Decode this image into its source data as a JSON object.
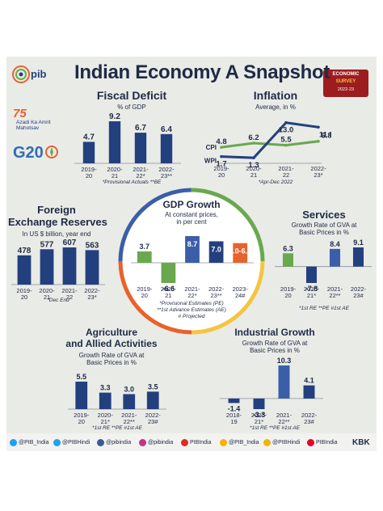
{
  "header": {
    "title": "Indian Economy A Snapshot",
    "logos": {
      "pib": "pib",
      "azadi": "Azadi Ka Amrit Mahotsav",
      "g20": "G20",
      "badge_line1": "ECONOMIC",
      "badge_line2": "SURVEY",
      "badge_line3": "2022-23"
    }
  },
  "colors": {
    "navy": "#23407e",
    "green": "#6aa84f",
    "blue": "#3b5ea8",
    "orange": "#e8622c",
    "text": "#1f2a44",
    "background": "#e9ebe7"
  },
  "chart_data": [
    {
      "id": "fiscal-deficit",
      "type": "bar",
      "title": "Fiscal Deficit",
      "subtitle": "% of GDP",
      "categories": [
        "2019-20",
        "2020-21",
        "2021-22*",
        "2022-23**"
      ],
      "values": [
        4.7,
        9.2,
        6.7,
        6.4
      ],
      "labels": [
        "4.7",
        "9.2",
        "6.7",
        "6.4"
      ],
      "footnote": "*Provisional Actuals **BE"
    },
    {
      "id": "inflation",
      "type": "line",
      "title": "Inflation",
      "subtitle": "Average, in %",
      "categories": [
        "2019-20",
        "2020-21",
        "2021-22",
        "2022-23*"
      ],
      "series": [
        {
          "name": "CPI",
          "values": [
            4.8,
            6.2,
            5.5,
            6.8
          ],
          "labels": [
            "4.8",
            "6.2",
            "5.5",
            "6.8"
          ]
        },
        {
          "name": "WPI",
          "values": [
            1.7,
            1.3,
            13.0,
            11.5
          ],
          "labels": [
            "1.7",
            "1.3",
            "13.0",
            "11.5"
          ]
        }
      ],
      "footnote": "*Apr-Dec 2022"
    },
    {
      "id": "forex",
      "type": "bar",
      "title_line1": "Foreign",
      "title_line2": "Exchange Reserves",
      "subtitle": "In US $ billion, year end",
      "categories": [
        "2019-20",
        "2020-21",
        "2021-22",
        "2022-23*"
      ],
      "values": [
        478,
        577,
        607,
        563
      ],
      "labels": [
        "478",
        "577",
        "607",
        "563"
      ],
      "footnote": "*Dec End"
    },
    {
      "id": "gdp-growth",
      "type": "bar",
      "title": "GDP Growth",
      "subtitle_line1": "At constant prices,",
      "subtitle_line2": "in per cent",
      "categories": [
        "2019-20",
        "2020-21",
        "2021-22*",
        "2022-23**",
        "2023-24#"
      ],
      "values": [
        3.7,
        -6.6,
        8.7,
        7.0,
        6.4
      ],
      "labels": [
        "3.7",
        "-6.6",
        "8.7",
        "7.0",
        "6.0-6.8"
      ],
      "footnote_lines": [
        "*Provisional Estimates (PE)",
        "**1st Advance Estimates (AE)",
        "# Projected"
      ]
    },
    {
      "id": "services",
      "type": "bar",
      "title": "Services",
      "subtitle_line1": "Growth Rate of GVA at",
      "subtitle_line2": "Basic Prices in %",
      "categories": [
        "2019-20",
        "2020-21*",
        "2021-22**",
        "2022-23#"
      ],
      "values": [
        6.3,
        -7.8,
        8.4,
        9.1
      ],
      "labels": [
        "6.3",
        "-7.8",
        "8.4",
        "9.1"
      ],
      "footnote": "*1st RE  **PE  #1st AE"
    },
    {
      "id": "agriculture",
      "type": "bar",
      "title_line1": "Agriculture",
      "title_line2": "and Allied Activities",
      "subtitle_line1": "Growth Rate of GVA at",
      "subtitle_line2": "Basic Prices in %",
      "categories": [
        "2019-20",
        "2020-21*",
        "2021-22**",
        "2022-23#"
      ],
      "values": [
        5.5,
        3.3,
        3.0,
        3.5
      ],
      "labels": [
        "5.5",
        "3.3",
        "3.0",
        "3.5"
      ],
      "footnote": "*1st RE  **PE  #1st AE"
    },
    {
      "id": "industrial",
      "type": "bar",
      "title": "Industrial Growth",
      "subtitle_line1": "Growth Rate of GVA at",
      "subtitle_line2": "Basic Prices in %",
      "categories": [
        "2018-19",
        "2020-21*",
        "2021-22**",
        "2022-23#"
      ],
      "values": [
        -1.4,
        -3.3,
        10.3,
        4.1
      ],
      "labels": [
        "-1.4",
        "-3.3",
        "10.3",
        "4.1"
      ],
      "footnote": "*1st RE  **PE  #1st AE"
    }
  ],
  "footer": {
    "items": [
      "@PIB_India",
      "@PIBHindi",
      "@pibindia",
      "@pibindia",
      "PIBIndia",
      "@PIB_India",
      "@PIBHindi",
      "PIBIndia"
    ],
    "brand": "KBK"
  }
}
